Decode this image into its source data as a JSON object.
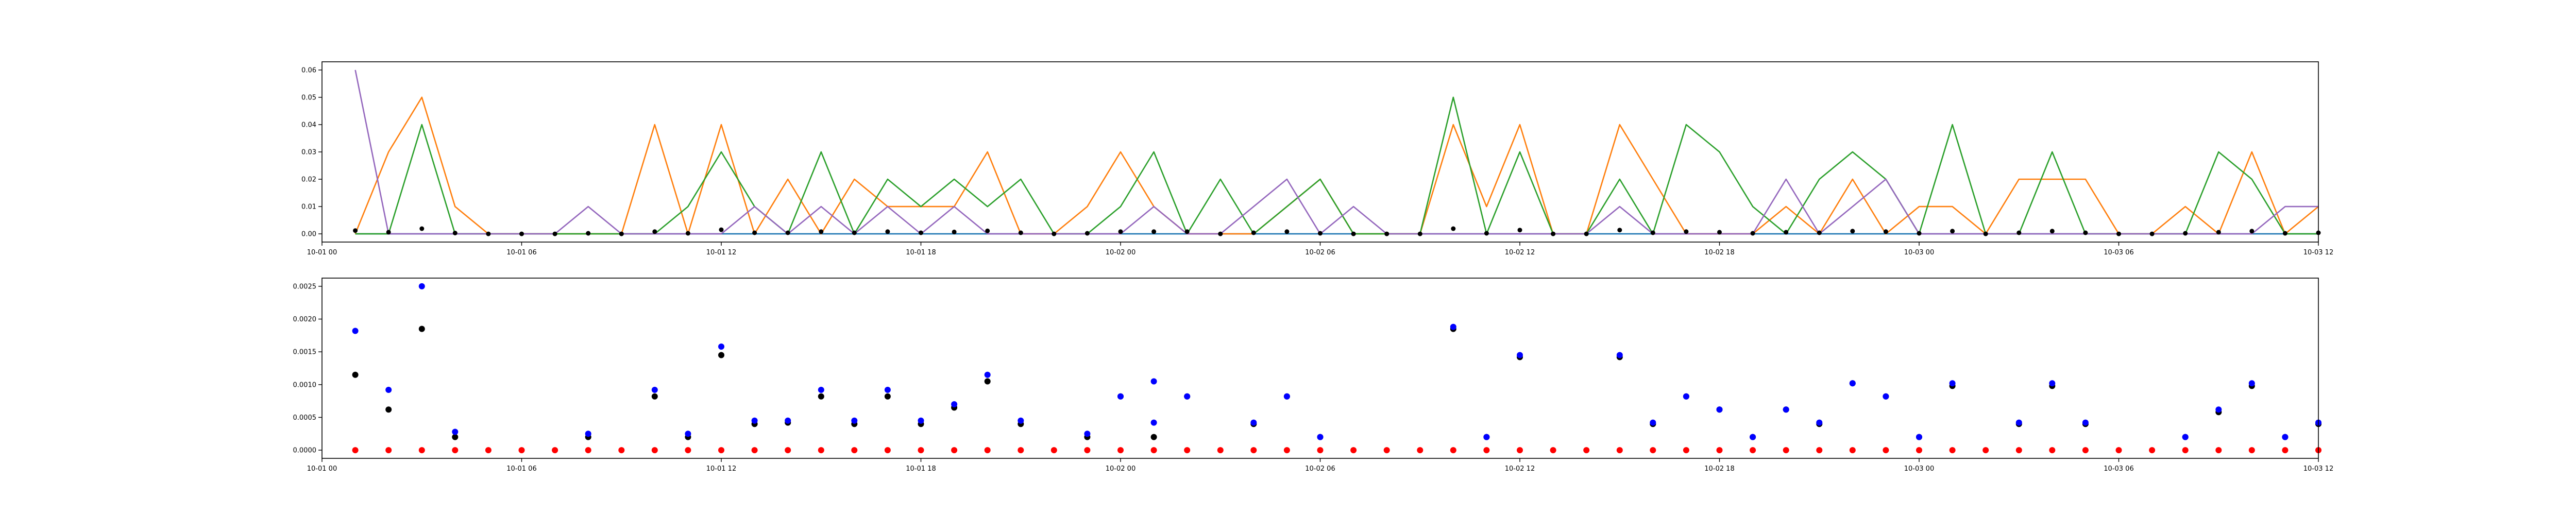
{
  "chart_data": [
    {
      "type": "line",
      "title": "",
      "xlabel": "",
      "ylabel": "",
      "grid": false,
      "x_unit": "time",
      "xlim": [
        "2020-10-01 00:00",
        "2020-10-03 12:00"
      ],
      "ylim": [
        -0.003,
        0.063
      ],
      "x_ticks": [
        {
          "t": "2020-10-01 00:00",
          "label": "10-01 00"
        },
        {
          "t": "2020-10-01 06:00",
          "label": "10-01 06"
        },
        {
          "t": "2020-10-01 12:00",
          "label": "10-01 12"
        },
        {
          "t": "2020-10-01 18:00",
          "label": "10-01 18"
        },
        {
          "t": "2020-10-02 00:00",
          "label": "10-02 00"
        },
        {
          "t": "2020-10-02 06:00",
          "label": "10-02 06"
        },
        {
          "t": "2020-10-02 12:00",
          "label": "10-02 12"
        },
        {
          "t": "2020-10-02 18:00",
          "label": "10-02 18"
        },
        {
          "t": "2020-10-03 00:00",
          "label": "10-03 00"
        },
        {
          "t": "2020-10-03 06:00",
          "label": "10-03 06"
        },
        {
          "t": "2020-10-03 12:00",
          "label": "10-03 12"
        }
      ],
      "y_ticks": [
        {
          "v": 0.0,
          "label": "0.00"
        },
        {
          "v": 0.01,
          "label": "0.01"
        },
        {
          "v": 0.02,
          "label": "0.02"
        },
        {
          "v": 0.03,
          "label": "0.03"
        },
        {
          "v": 0.04,
          "label": "0.04"
        },
        {
          "v": 0.05,
          "label": "0.05"
        },
        {
          "v": 0.06,
          "label": "0.06"
        }
      ],
      "x": [
        "2020-10-01 01:00",
        "2020-10-01 02:00",
        "2020-10-01 03:00",
        "2020-10-01 04:00",
        "2020-10-01 05:00",
        "2020-10-01 06:00",
        "2020-10-01 07:00",
        "2020-10-01 08:00",
        "2020-10-01 09:00",
        "2020-10-01 10:00",
        "2020-10-01 11:00",
        "2020-10-01 12:00",
        "2020-10-01 13:00",
        "2020-10-01 14:00",
        "2020-10-01 15:00",
        "2020-10-01 16:00",
        "2020-10-01 17:00",
        "2020-10-01 18:00",
        "2020-10-01 19:00",
        "2020-10-01 20:00",
        "2020-10-01 21:00",
        "2020-10-01 22:00",
        "2020-10-01 23:00",
        "2020-10-02 00:00",
        "2020-10-02 01:00",
        "2020-10-02 02:00",
        "2020-10-02 03:00",
        "2020-10-02 04:00",
        "2020-10-02 05:00",
        "2020-10-02 06:00",
        "2020-10-02 07:00",
        "2020-10-02 08:00",
        "2020-10-02 09:00",
        "2020-10-02 10:00",
        "2020-10-02 11:00",
        "2020-10-02 12:00",
        "2020-10-02 13:00",
        "2020-10-02 14:00",
        "2020-10-02 15:00",
        "2020-10-02 16:00",
        "2020-10-02 17:00",
        "2020-10-02 18:00",
        "2020-10-02 19:00",
        "2020-10-02 20:00",
        "2020-10-02 21:00",
        "2020-10-02 22:00",
        "2020-10-02 23:00",
        "2020-10-03 00:00",
        "2020-10-03 01:00",
        "2020-10-03 02:00",
        "2020-10-03 03:00",
        "2020-10-03 04:00",
        "2020-10-03 05:00",
        "2020-10-03 06:00",
        "2020-10-03 07:00",
        "2020-10-03 08:00",
        "2020-10-03 09:00",
        "2020-10-03 10:00",
        "2020-10-03 11:00",
        "2020-10-03 12:00"
      ],
      "series": [
        {
          "color": "#1f77b4",
          "kind": "line",
          "values": [
            0,
            0,
            0,
            0,
            0,
            0,
            0,
            0,
            0,
            0,
            0,
            0,
            0,
            0,
            0,
            0,
            0,
            0,
            0,
            0,
            0,
            0,
            0,
            0,
            0,
            0,
            0,
            0,
            0,
            0,
            0,
            0,
            0,
            0,
            0,
            0,
            0,
            0,
            0,
            0,
            0,
            0,
            0,
            0,
            0,
            0,
            0,
            0,
            0,
            0,
            0,
            0,
            0,
            0,
            0,
            0,
            0,
            0,
            0,
            0
          ]
        },
        {
          "color": "#ff7f0e",
          "kind": "line",
          "values": [
            0,
            0.03,
            0.05,
            0.01,
            0,
            0,
            0,
            0,
            0,
            0.04,
            0,
            0.04,
            0,
            0.02,
            0,
            0.02,
            0.01,
            0.01,
            0.01,
            0.03,
            0,
            0,
            0.01,
            0.03,
            0.01,
            0,
            0,
            0,
            0.01,
            0.02,
            0,
            0,
            0,
            0.04,
            0.01,
            0.04,
            0,
            0,
            0.04,
            0.02,
            0,
            0,
            0,
            0.01,
            0,
            0.02,
            0,
            0.01,
            0.01,
            0,
            0.02,
            0.02,
            0.02,
            0,
            0,
            0.01,
            0,
            0.03,
            0,
            0.01
          ]
        },
        {
          "color": "#2ca02c",
          "kind": "line",
          "values": [
            0,
            0,
            0.04,
            0,
            0,
            0,
            0,
            0,
            0,
            0,
            0.01,
            0.03,
            0.01,
            0,
            0.03,
            0,
            0.02,
            0.01,
            0.02,
            0.01,
            0.02,
            0,
            0,
            0.01,
            0.03,
            0,
            0.02,
            0,
            0.01,
            0.02,
            0,
            0,
            0,
            0.05,
            0,
            0.03,
            0,
            0,
            0.02,
            0,
            0.04,
            0.03,
            0.01,
            0,
            0.02,
            0.03,
            0.02,
            0,
            0.04,
            0,
            0,
            0.03,
            0,
            0,
            0,
            0,
            0.03,
            0.02,
            0,
            0
          ]
        },
        {
          "color": "#9467bd",
          "kind": "line",
          "values": [
            0.06,
            0,
            0,
            0,
            0,
            0,
            0,
            0.01,
            0,
            0,
            0,
            0,
            0.01,
            0,
            0.01,
            0,
            0.01,
            0,
            0.01,
            0,
            0,
            0,
            0,
            0,
            0.01,
            0,
            0,
            0.01,
            0.02,
            0,
            0.01,
            0,
            0,
            0,
            0,
            0,
            0,
            0,
            0.01,
            0,
            0,
            0,
            0,
            0.02,
            0,
            0.01,
            0.02,
            0,
            0,
            0,
            0,
            0,
            0,
            0,
            0,
            0,
            0,
            0,
            0.01,
            0.01
          ]
        },
        {
          "color": "#000000",
          "kind": "scatter",
          "values": [
            0.0012,
            0.0006,
            0.0019,
            0.0003,
            0,
            0,
            0,
            0.0002,
            0,
            0.0008,
            0.0002,
            0.0015,
            0.0004,
            0.0004,
            0.0008,
            0.0004,
            0.0008,
            0.0004,
            0.0007,
            0.0011,
            0.0004,
            0,
            0.0002,
            0.0008,
            0.0008,
            0.0008,
            0,
            0.0004,
            0.0008,
            0.0002,
            0,
            0,
            0,
            0.0019,
            0.0002,
            0.0014,
            0,
            0,
            0.0014,
            0.0004,
            0.0008,
            0.0006,
            0.0002,
            0.0006,
            0.0004,
            0.001,
            0.0008,
            0.0002,
            0.001,
            0,
            0.0004,
            0.001,
            0.0004,
            0,
            0,
            0.0002,
            0.0006,
            0.001,
            0.0002,
            0.0004
          ]
        }
      ]
    },
    {
      "type": "scatter",
      "title": "",
      "xlabel": "",
      "ylabel": "",
      "grid": false,
      "x_unit": "time",
      "xlim": [
        "2020-10-01 00:00",
        "2020-10-03 12:00"
      ],
      "ylim": [
        -0.000125,
        0.002625
      ],
      "x_ticks": [
        {
          "t": "2020-10-01 00:00",
          "label": "10-01 00"
        },
        {
          "t": "2020-10-01 06:00",
          "label": "10-01 06"
        },
        {
          "t": "2020-10-01 12:00",
          "label": "10-01 12"
        },
        {
          "t": "2020-10-01 18:00",
          "label": "10-01 18"
        },
        {
          "t": "2020-10-02 00:00",
          "label": "10-02 00"
        },
        {
          "t": "2020-10-02 06:00",
          "label": "10-02 06"
        },
        {
          "t": "2020-10-02 12:00",
          "label": "10-02 12"
        },
        {
          "t": "2020-10-02 18:00",
          "label": "10-02 18"
        },
        {
          "t": "2020-10-03 00:00",
          "label": "10-03 00"
        },
        {
          "t": "2020-10-03 06:00",
          "label": "10-03 06"
        },
        {
          "t": "2020-10-03 12:00",
          "label": "10-03 12"
        }
      ],
      "y_ticks": [
        {
          "v": 0.0,
          "label": "0.0000"
        },
        {
          "v": 0.0005,
          "label": "0.0005"
        },
        {
          "v": 0.001,
          "label": "0.0010"
        },
        {
          "v": 0.0015,
          "label": "0.0015"
        },
        {
          "v": 0.002,
          "label": "0.0020"
        },
        {
          "v": 0.0025,
          "label": "0.0025"
        }
      ],
      "x": [
        "2020-10-01 01:00",
        "2020-10-01 02:00",
        "2020-10-01 03:00",
        "2020-10-01 04:00",
        "2020-10-01 05:00",
        "2020-10-01 06:00",
        "2020-10-01 07:00",
        "2020-10-01 08:00",
        "2020-10-01 09:00",
        "2020-10-01 10:00",
        "2020-10-01 11:00",
        "2020-10-01 12:00",
        "2020-10-01 13:00",
        "2020-10-01 14:00",
        "2020-10-01 15:00",
        "2020-10-01 16:00",
        "2020-10-01 17:00",
        "2020-10-01 18:00",
        "2020-10-01 19:00",
        "2020-10-01 20:00",
        "2020-10-01 21:00",
        "2020-10-01 22:00",
        "2020-10-01 23:00",
        "2020-10-02 00:00",
        "2020-10-02 01:00",
        "2020-10-02 02:00",
        "2020-10-02 03:00",
        "2020-10-02 04:00",
        "2020-10-02 05:00",
        "2020-10-02 06:00",
        "2020-10-02 07:00",
        "2020-10-02 08:00",
        "2020-10-02 09:00",
        "2020-10-02 10:00",
        "2020-10-02 11:00",
        "2020-10-02 12:00",
        "2020-10-02 13:00",
        "2020-10-02 14:00",
        "2020-10-02 15:00",
        "2020-10-02 16:00",
        "2020-10-02 17:00",
        "2020-10-02 18:00",
        "2020-10-02 19:00",
        "2020-10-02 20:00",
        "2020-10-02 21:00",
        "2020-10-02 22:00",
        "2020-10-02 23:00",
        "2020-10-03 00:00",
        "2020-10-03 01:00",
        "2020-10-03 02:00",
        "2020-10-03 03:00",
        "2020-10-03 04:00",
        "2020-10-03 05:00",
        "2020-10-03 06:00",
        "2020-10-03 07:00",
        "2020-10-03 08:00",
        "2020-10-03 09:00",
        "2020-10-03 10:00",
        "2020-10-03 11:00",
        "2020-10-03 12:00"
      ],
      "series": [
        {
          "color": "#ff0000",
          "kind": "scatter",
          "values": [
            0,
            0,
            0,
            0,
            0,
            0,
            0,
            0,
            0,
            0,
            0,
            0,
            0,
            0,
            0,
            0,
            0,
            0,
            0,
            0,
            0,
            0,
            0,
            0,
            0,
            0,
            0,
            0,
            0,
            0,
            0,
            0,
            0,
            0,
            0,
            0,
            0,
            0,
            0,
            0,
            0,
            0,
            0,
            0,
            0,
            0,
            0,
            0,
            0,
            0,
            0,
            0,
            0,
            0,
            0,
            0,
            0,
            0,
            0,
            0
          ]
        },
        {
          "color": "#000000",
          "kind": "scatter",
          "values": [
            0.00115,
            0.00062,
            0.00185,
            0.0002,
            null,
            null,
            null,
            0.0002,
            null,
            0.00082,
            0.0002,
            0.00145,
            0.0004,
            0.00042,
            0.00082,
            0.0004,
            0.00082,
            0.0004,
            0.00065,
            0.00105,
            0.0004,
            null,
            0.0002,
            0.00082,
            0.0002,
            0.00082,
            null,
            0.0004,
            0.00082,
            0.0002,
            null,
            null,
            null,
            0.00185,
            0.0002,
            0.00142,
            null,
            null,
            0.00142,
            0.0004,
            0.00082,
            0.00062,
            0.0002,
            0.00062,
            0.0004,
            0.00102,
            0.00082,
            0.0002,
            0.00098,
            null,
            0.0004,
            0.00098,
            0.0004,
            null,
            null,
            0.0002,
            0.00058,
            0.00098,
            0.0002,
            0.0004
          ]
        },
        {
          "color": "#0000ff",
          "kind": "scatter",
          "values": [
            0.00182,
            0.00092,
            0.0025,
            0.00028,
            null,
            null,
            null,
            0.00025,
            null,
            0.00092,
            0.00025,
            0.00158,
            0.00045,
            0.00045,
            0.00092,
            0.00045,
            0.00092,
            0.00045,
            0.0007,
            0.00115,
            0.00045,
            null,
            0.00025,
            0.00082,
            0.00105,
            0.00082,
            null,
            0.00042,
            0.00082,
            0.0002,
            null,
            null,
            null,
            0.00188,
            0.0002,
            0.00145,
            null,
            null,
            0.00145,
            0.00042,
            0.00082,
            0.00062,
            0.0002,
            0.00062,
            0.00042,
            0.00102,
            0.00082,
            0.0002,
            0.00102,
            null,
            0.00042,
            0.00102,
            0.00042,
            null,
            null,
            0.0002,
            0.00062,
            0.00102,
            0.0002,
            0.00042
          ]
        },
        {
          "color": "#0000ff",
          "kind": "scatter",
          "values": [
            null,
            null,
            null,
            null,
            null,
            null,
            null,
            null,
            null,
            null,
            null,
            null,
            null,
            null,
            null,
            null,
            null,
            null,
            null,
            null,
            null,
            null,
            null,
            null,
            0.00042,
            null,
            null,
            null,
            null,
            null,
            null,
            null,
            null,
            null,
            null,
            null,
            null,
            null,
            null,
            null,
            null,
            null,
            null,
            null,
            null,
            null,
            null,
            null,
            null,
            null,
            null,
            null,
            null,
            null,
            null,
            null,
            null,
            null,
            null,
            null
          ]
        }
      ]
    }
  ]
}
